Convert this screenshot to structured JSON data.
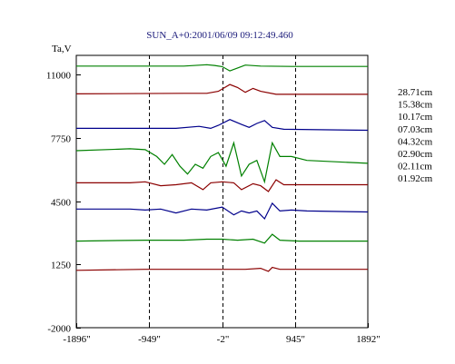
{
  "chart_data": {
    "type": "line",
    "title": "SUN_A+0:2001/06/09 09:12:49.460",
    "ylabel": "Ta,V",
    "xlabel": "",
    "xlim": [
      -1896,
      1892
    ],
    "ylim": [
      -2000,
      12000
    ],
    "x_ticks": [
      {
        "value": -1896,
        "label": "-1896\""
      },
      {
        "value": -949,
        "label": "-949\""
      },
      {
        "value": -2,
        "label": "-2\""
      },
      {
        "value": 945,
        "label": "945\""
      },
      {
        "value": 1892,
        "label": "1892\""
      }
    ],
    "y_ticks": [
      {
        "value": 11000,
        "label": "11000"
      },
      {
        "value": 7750,
        "label": "7750"
      },
      {
        "value": 4500,
        "label": "4500"
      },
      {
        "value": 1250,
        "label": "1250"
      },
      {
        "value": -2000,
        "label": "-2000"
      }
    ],
    "vertical_dashed_lines_x": [
      -949,
      -2,
      945
    ],
    "series": [
      {
        "name": "28.71cm",
        "color": "#008000",
        "baseline": 11450,
        "points": [
          [
            -1896,
            11450
          ],
          [
            -500,
            11450
          ],
          [
            -200,
            11520
          ],
          [
            -100,
            11480
          ],
          [
            0,
            11420
          ],
          [
            100,
            11200
          ],
          [
            200,
            11350
          ],
          [
            300,
            11500
          ],
          [
            500,
            11450
          ],
          [
            900,
            11430
          ],
          [
            1892,
            11430
          ]
        ]
      },
      {
        "name": "15.38cm",
        "color": "#8b0000",
        "baseline": 10050,
        "points": [
          [
            -1896,
            10020
          ],
          [
            -500,
            10050
          ],
          [
            -200,
            10050
          ],
          [
            -50,
            10150
          ],
          [
            100,
            10500
          ],
          [
            200,
            10350
          ],
          [
            300,
            10100
          ],
          [
            400,
            10300
          ],
          [
            500,
            10150
          ],
          [
            700,
            10000
          ],
          [
            1892,
            10000
          ]
        ]
      },
      {
        "name": "10.17cm",
        "color": "#00008b",
        "baseline": 8250,
        "points": [
          [
            -1896,
            8250
          ],
          [
            -950,
            8250
          ],
          [
            -600,
            8250
          ],
          [
            -300,
            8350
          ],
          [
            -150,
            8250
          ],
          [
            -50,
            8400
          ],
          [
            100,
            8700
          ],
          [
            250,
            8450
          ],
          [
            350,
            8300
          ],
          [
            450,
            8500
          ],
          [
            550,
            8650
          ],
          [
            650,
            8300
          ],
          [
            800,
            8200
          ],
          [
            1892,
            8150
          ]
        ]
      },
      {
        "name": "07.03cm",
        "color": "#008000",
        "baseline": 7100,
        "points": [
          [
            -1896,
            7100
          ],
          [
            -1200,
            7200
          ],
          [
            -1000,
            7150
          ],
          [
            -850,
            6800
          ],
          [
            -750,
            6400
          ],
          [
            -650,
            6900
          ],
          [
            -550,
            6300
          ],
          [
            -450,
            5900
          ],
          [
            -350,
            6400
          ],
          [
            -250,
            6200
          ],
          [
            -150,
            6800
          ],
          [
            -50,
            7000
          ],
          [
            50,
            6300
          ],
          [
            150,
            7500
          ],
          [
            250,
            5800
          ],
          [
            350,
            6400
          ],
          [
            450,
            6600
          ],
          [
            550,
            5500
          ],
          [
            650,
            7500
          ],
          [
            750,
            6800
          ],
          [
            900,
            6800
          ],
          [
            1100,
            6600
          ],
          [
            1892,
            6450
          ]
        ]
      },
      {
        "name": "04.32cm",
        "color": "#8b0000",
        "baseline": 5450,
        "points": [
          [
            -1896,
            5450
          ],
          [
            -1200,
            5450
          ],
          [
            -1000,
            5500
          ],
          [
            -800,
            5300
          ],
          [
            -600,
            5350
          ],
          [
            -400,
            5450
          ],
          [
            -250,
            5100
          ],
          [
            -150,
            5450
          ],
          [
            0,
            5500
          ],
          [
            150,
            5450
          ],
          [
            250,
            5100
          ],
          [
            400,
            5400
          ],
          [
            500,
            5300
          ],
          [
            600,
            5000
          ],
          [
            700,
            5600
          ],
          [
            800,
            5350
          ],
          [
            1000,
            5350
          ],
          [
            1892,
            5350
          ]
        ]
      },
      {
        "name": "02.90cm",
        "color": "#00008b",
        "baseline": 4050,
        "points": [
          [
            -1896,
            4100
          ],
          [
            -1200,
            4100
          ],
          [
            -1000,
            4050
          ],
          [
            -800,
            4100
          ],
          [
            -600,
            3900
          ],
          [
            -400,
            4100
          ],
          [
            -200,
            4050
          ],
          [
            0,
            4200
          ],
          [
            150,
            3800
          ],
          [
            250,
            4000
          ],
          [
            350,
            3900
          ],
          [
            450,
            4000
          ],
          [
            550,
            3600
          ],
          [
            650,
            4400
          ],
          [
            750,
            4000
          ],
          [
            900,
            4050
          ],
          [
            1100,
            4000
          ],
          [
            1892,
            3950
          ]
        ]
      },
      {
        "name": "02.11cm",
        "color": "#008000",
        "baseline": 2500,
        "points": [
          [
            -1896,
            2450
          ],
          [
            -1000,
            2500
          ],
          [
            -500,
            2500
          ],
          [
            -200,
            2550
          ],
          [
            0,
            2550
          ],
          [
            200,
            2500
          ],
          [
            400,
            2550
          ],
          [
            550,
            2350
          ],
          [
            650,
            2800
          ],
          [
            750,
            2500
          ],
          [
            1000,
            2450
          ],
          [
            1892,
            2450
          ]
        ]
      },
      {
        "name": "01.92cm",
        "color": "#8b0000",
        "baseline": 1000,
        "points": [
          [
            -1896,
            950
          ],
          [
            -1000,
            1000
          ],
          [
            -500,
            1000
          ],
          [
            0,
            1000
          ],
          [
            300,
            1000
          ],
          [
            500,
            1050
          ],
          [
            600,
            900
          ],
          [
            650,
            1100
          ],
          [
            750,
            1000
          ],
          [
            1000,
            1000
          ],
          [
            1892,
            1000
          ]
        ]
      }
    ]
  }
}
